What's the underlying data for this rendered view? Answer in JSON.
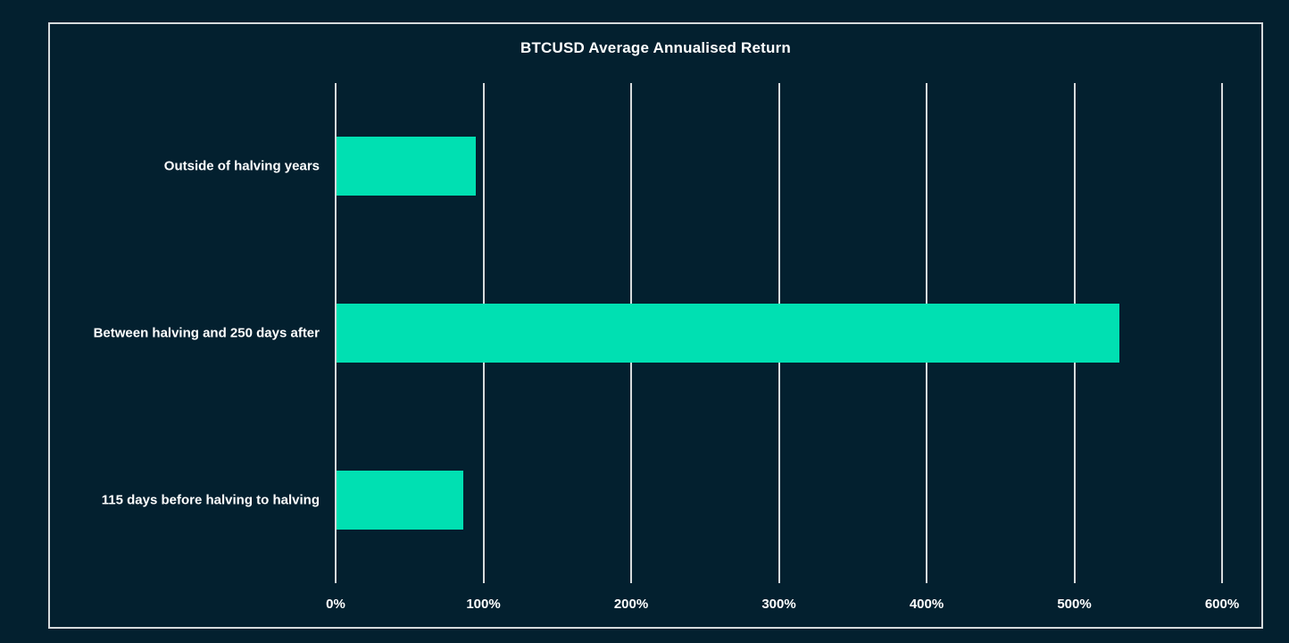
{
  "chart_data": {
    "type": "bar",
    "orientation": "horizontal",
    "title": "BTCUSD Average Annualised Return",
    "categories": [
      "Outside of halving years",
      "Between halving and 250 days after",
      "115 days before halving to halving"
    ],
    "values": [
      94,
      530,
      86
    ],
    "value_unit": "%",
    "xlabel": "",
    "ylabel": "",
    "xlim": [
      0,
      600
    ],
    "x_tick_values": [
      0,
      100,
      200,
      300,
      400,
      500,
      600
    ],
    "x_tick_labels": [
      "0%",
      "100%",
      "200%",
      "300%",
      "400%",
      "500%",
      "600%"
    ],
    "grid": "vertical-only",
    "legend": "none",
    "colors": {
      "background": "#03202F",
      "bar": "#00E0B2",
      "gridline": "#D6DADC",
      "frame_border": "#D6DADC",
      "text": "#FFFFFF"
    }
  }
}
